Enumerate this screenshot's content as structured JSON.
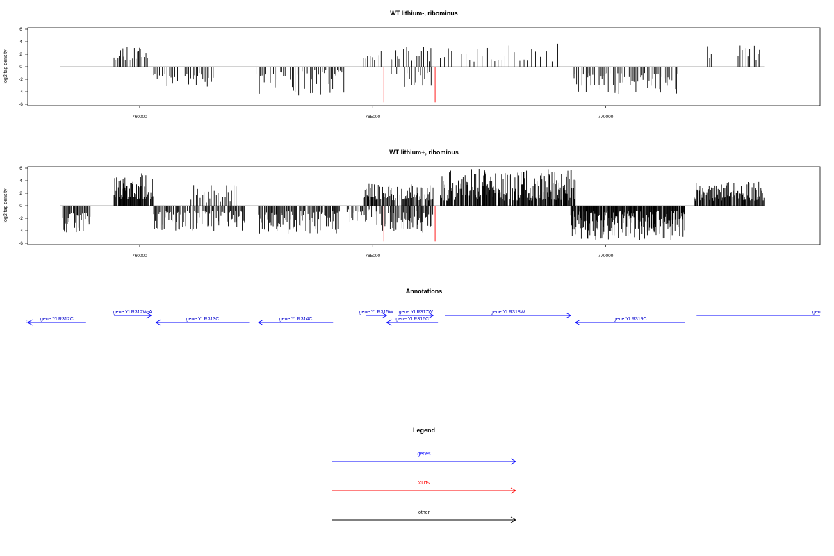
{
  "chart_data": [
    {
      "type": "bar",
      "title": "WT lithium-, ribominus",
      "ylabel": "log2 tag density",
      "xlim": [
        757600,
        774600
      ],
      "ylim": [
        -6,
        6
      ],
      "x_ticks": [
        "760000",
        "765000",
        "770000"
      ],
      "x_tick_values": [
        760000,
        765000,
        770000
      ],
      "y_ticks": [
        "-6",
        "-4",
        "-2",
        "0",
        "2",
        "4",
        "6"
      ],
      "y_tick_values": [
        -6,
        -4,
        -2,
        0,
        2,
        4,
        6
      ],
      "baseline": {
        "from": 758300,
        "to": 773400,
        "color": "#888888"
      },
      "series": [
        {
          "color": "#000000",
          "regions": [
            {
              "start": 759450,
              "end": 760230,
              "sign": 1,
              "min": 1.0,
              "max": 3.9,
              "step": 30,
              "seed": 11
            },
            {
              "start": 760300,
              "end": 761600,
              "sign": -1,
              "min": 1.0,
              "max": 3.2,
              "step": 45,
              "seed": 12
            },
            {
              "start": 762500,
              "end": 764400,
              "sign": -1,
              "min": 0.5,
              "max": 4.6,
              "step": 33,
              "seed": 13
            },
            {
              "start": 764800,
              "end": 765200,
              "sign": 1,
              "min": 1.0,
              "max": 3.6,
              "step": 55,
              "seed": 14
            },
            {
              "start": 765400,
              "end": 766300,
              "sign": 1,
              "min": 0.8,
              "max": 3.2,
              "step": 50,
              "seed": 15
            },
            {
              "start": 765400,
              "end": 766300,
              "sign": -1,
              "min": 0.8,
              "max": 3.3,
              "step": 50,
              "seed": 16
            },
            {
              "start": 766450,
              "end": 769000,
              "sign": 1,
              "min": 0.8,
              "max": 4.4,
              "step": 95,
              "seed": 17
            },
            {
              "start": 769300,
              "end": 771550,
              "sign": -1,
              "min": 1.0,
              "max": 4.4,
              "step": 30,
              "seed": 18
            },
            {
              "start": 772050,
              "end": 772300,
              "sign": 1,
              "min": 1.0,
              "max": 4.8,
              "step": 40,
              "seed": 19
            },
            {
              "start": 772800,
              "end": 773300,
              "sign": 1,
              "min": 1.0,
              "max": 3.5,
              "step": 40,
              "seed": 20
            }
          ]
        },
        {
          "color": "#ff3333",
          "points": [
            {
              "x": 765240,
              "y": -5.7
            },
            {
              "x": 766340,
              "y": -5.7
            }
          ]
        }
      ]
    },
    {
      "type": "bar",
      "title": "WT lithium+, ribominus",
      "ylabel": "log2 tag density",
      "xlim": [
        757600,
        774600
      ],
      "ylim": [
        -6,
        6
      ],
      "x_ticks": [
        "760000",
        "765000",
        "770000"
      ],
      "x_tick_values": [
        760000,
        765000,
        770000
      ],
      "y_ticks": [
        "-6",
        "-4",
        "-2",
        "0",
        "2",
        "4",
        "6"
      ],
      "y_tick_values": [
        -6,
        -4,
        -2,
        0,
        2,
        4,
        6
      ],
      "baseline": {
        "from": 758300,
        "to": 773400,
        "color": "#888888"
      },
      "series": [
        {
          "color": "#000000",
          "regions": [
            {
              "start": 758300,
              "end": 758950,
              "sign": -1,
              "min": 1.0,
              "max": 4.3,
              "step": 18,
              "seed": 31
            },
            {
              "start": 759450,
              "end": 760300,
              "sign": 1,
              "min": 1.0,
              "max": 5.2,
              "step": 12,
              "seed": 32
            },
            {
              "start": 760300,
              "end": 762250,
              "sign": -1,
              "min": 0.8,
              "max": 4.2,
              "step": 20,
              "seed": 33
            },
            {
              "start": 761100,
              "end": 762200,
              "sign": 1,
              "min": 0.5,
              "max": 3.3,
              "step": 45,
              "seed": 34
            },
            {
              "start": 762550,
              "end": 764300,
              "sign": -1,
              "min": 0.8,
              "max": 4.6,
              "step": 18,
              "seed": 35
            },
            {
              "start": 764450,
              "end": 765000,
              "sign": -1,
              "min": 0.6,
              "max": 3.0,
              "step": 30,
              "seed": 36
            },
            {
              "start": 764800,
              "end": 766300,
              "sign": 1,
              "min": 0.8,
              "max": 3.5,
              "step": 15,
              "seed": 37
            },
            {
              "start": 765050,
              "end": 766300,
              "sign": -1,
              "min": 0.8,
              "max": 4.3,
              "step": 20,
              "seed": 38
            },
            {
              "start": 766450,
              "end": 769350,
              "sign": 1,
              "min": 0.8,
              "max": 5.9,
              "step": 12,
              "seed": 39
            },
            {
              "start": 769250,
              "end": 771700,
              "sign": -1,
              "min": 0.8,
              "max": 5.5,
              "step": 10,
              "seed": 40
            },
            {
              "start": 771900,
              "end": 773400,
              "sign": 1,
              "min": 0.8,
              "max": 3.8,
              "step": 14,
              "seed": 41
            }
          ]
        },
        {
          "color": "#ff3333",
          "points": [
            {
              "x": 765240,
              "y": -5.7
            },
            {
              "x": 766340,
              "y": -5.7
            }
          ]
        }
      ]
    }
  ],
  "annotations": {
    "title": "Annotations",
    "genes": [
      {
        "label": "gene YLR312C",
        "strand": "-",
        "start": 757600,
        "end": 758850,
        "row": 1
      },
      {
        "label": "gene YLR312W-A",
        "strand": "+",
        "start": 759450,
        "end": 760250,
        "row": 0
      },
      {
        "label": "gene YLR313C",
        "strand": "-",
        "start": 760350,
        "end": 762350,
        "row": 1
      },
      {
        "label": "gene YLR314C",
        "strand": "-",
        "start": 762550,
        "end": 764150,
        "row": 1
      },
      {
        "label": "gene YLR315W",
        "strand": "+",
        "start": 764850,
        "end": 765300,
        "row": 0
      },
      {
        "label": "gene YLR316C",
        "strand": "-",
        "start": 765300,
        "end": 766400,
        "row": 1
      },
      {
        "label": "gene YLR317W",
        "strand": "+",
        "start": 765550,
        "end": 766300,
        "row": 0
      },
      {
        "label": "gene YLR318W",
        "strand": "+",
        "start": 766550,
        "end": 769250,
        "row": 0
      },
      {
        "label": "gene YLR319C",
        "strand": "-",
        "start": 769350,
        "end": 771700,
        "row": 1
      },
      {
        "label": "gen",
        "strand": "+",
        "start": 771950,
        "end": 774600,
        "row": 0
      }
    ]
  },
  "legend": {
    "title": "Legend",
    "items": [
      {
        "label": "genes",
        "color": "#0000ff"
      },
      {
        "label": "XUTs",
        "color": "#ff0000"
      },
      {
        "label": "other",
        "color": "#000000"
      }
    ]
  }
}
